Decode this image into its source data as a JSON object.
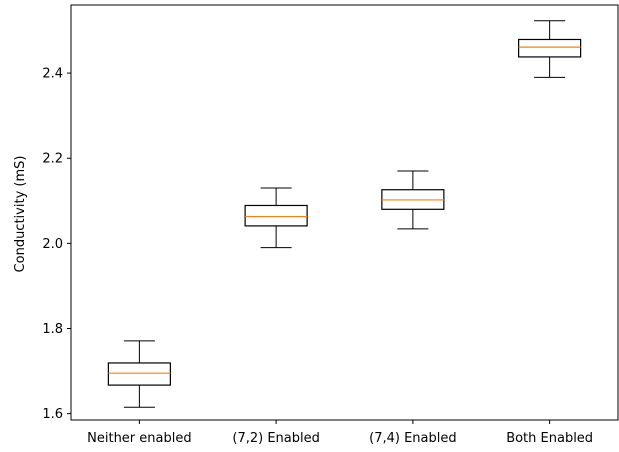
{
  "chart_data": {
    "type": "box",
    "title": "",
    "xlabel": "",
    "ylabel": "Conductivity (mS)",
    "ylim": [
      1.585,
      2.56
    ],
    "yticks": [
      "1.6",
      "1.8",
      "2.0",
      "2.2",
      "2.4"
    ],
    "grid": false,
    "categories": [
      "Neither enabled",
      "(7,2) Enabled",
      "(7,4) Enabled",
      "Both Enabled"
    ],
    "boxes": [
      {
        "whisker_low": 1.615,
        "q1": 1.667,
        "median": 1.695,
        "q3": 1.719,
        "whisker_high": 1.771
      },
      {
        "whisker_low": 1.99,
        "q1": 2.041,
        "median": 2.063,
        "q3": 2.089,
        "whisker_high": 2.13
      },
      {
        "whisker_low": 2.034,
        "q1": 2.08,
        "median": 2.102,
        "q3": 2.126,
        "whisker_high": 2.17
      },
      {
        "whisker_low": 2.39,
        "q1": 2.438,
        "median": 2.461,
        "q3": 2.479,
        "whisker_high": 2.523
      }
    ],
    "colors": {
      "box": "#000000",
      "median": "#ff7f0e"
    }
  }
}
